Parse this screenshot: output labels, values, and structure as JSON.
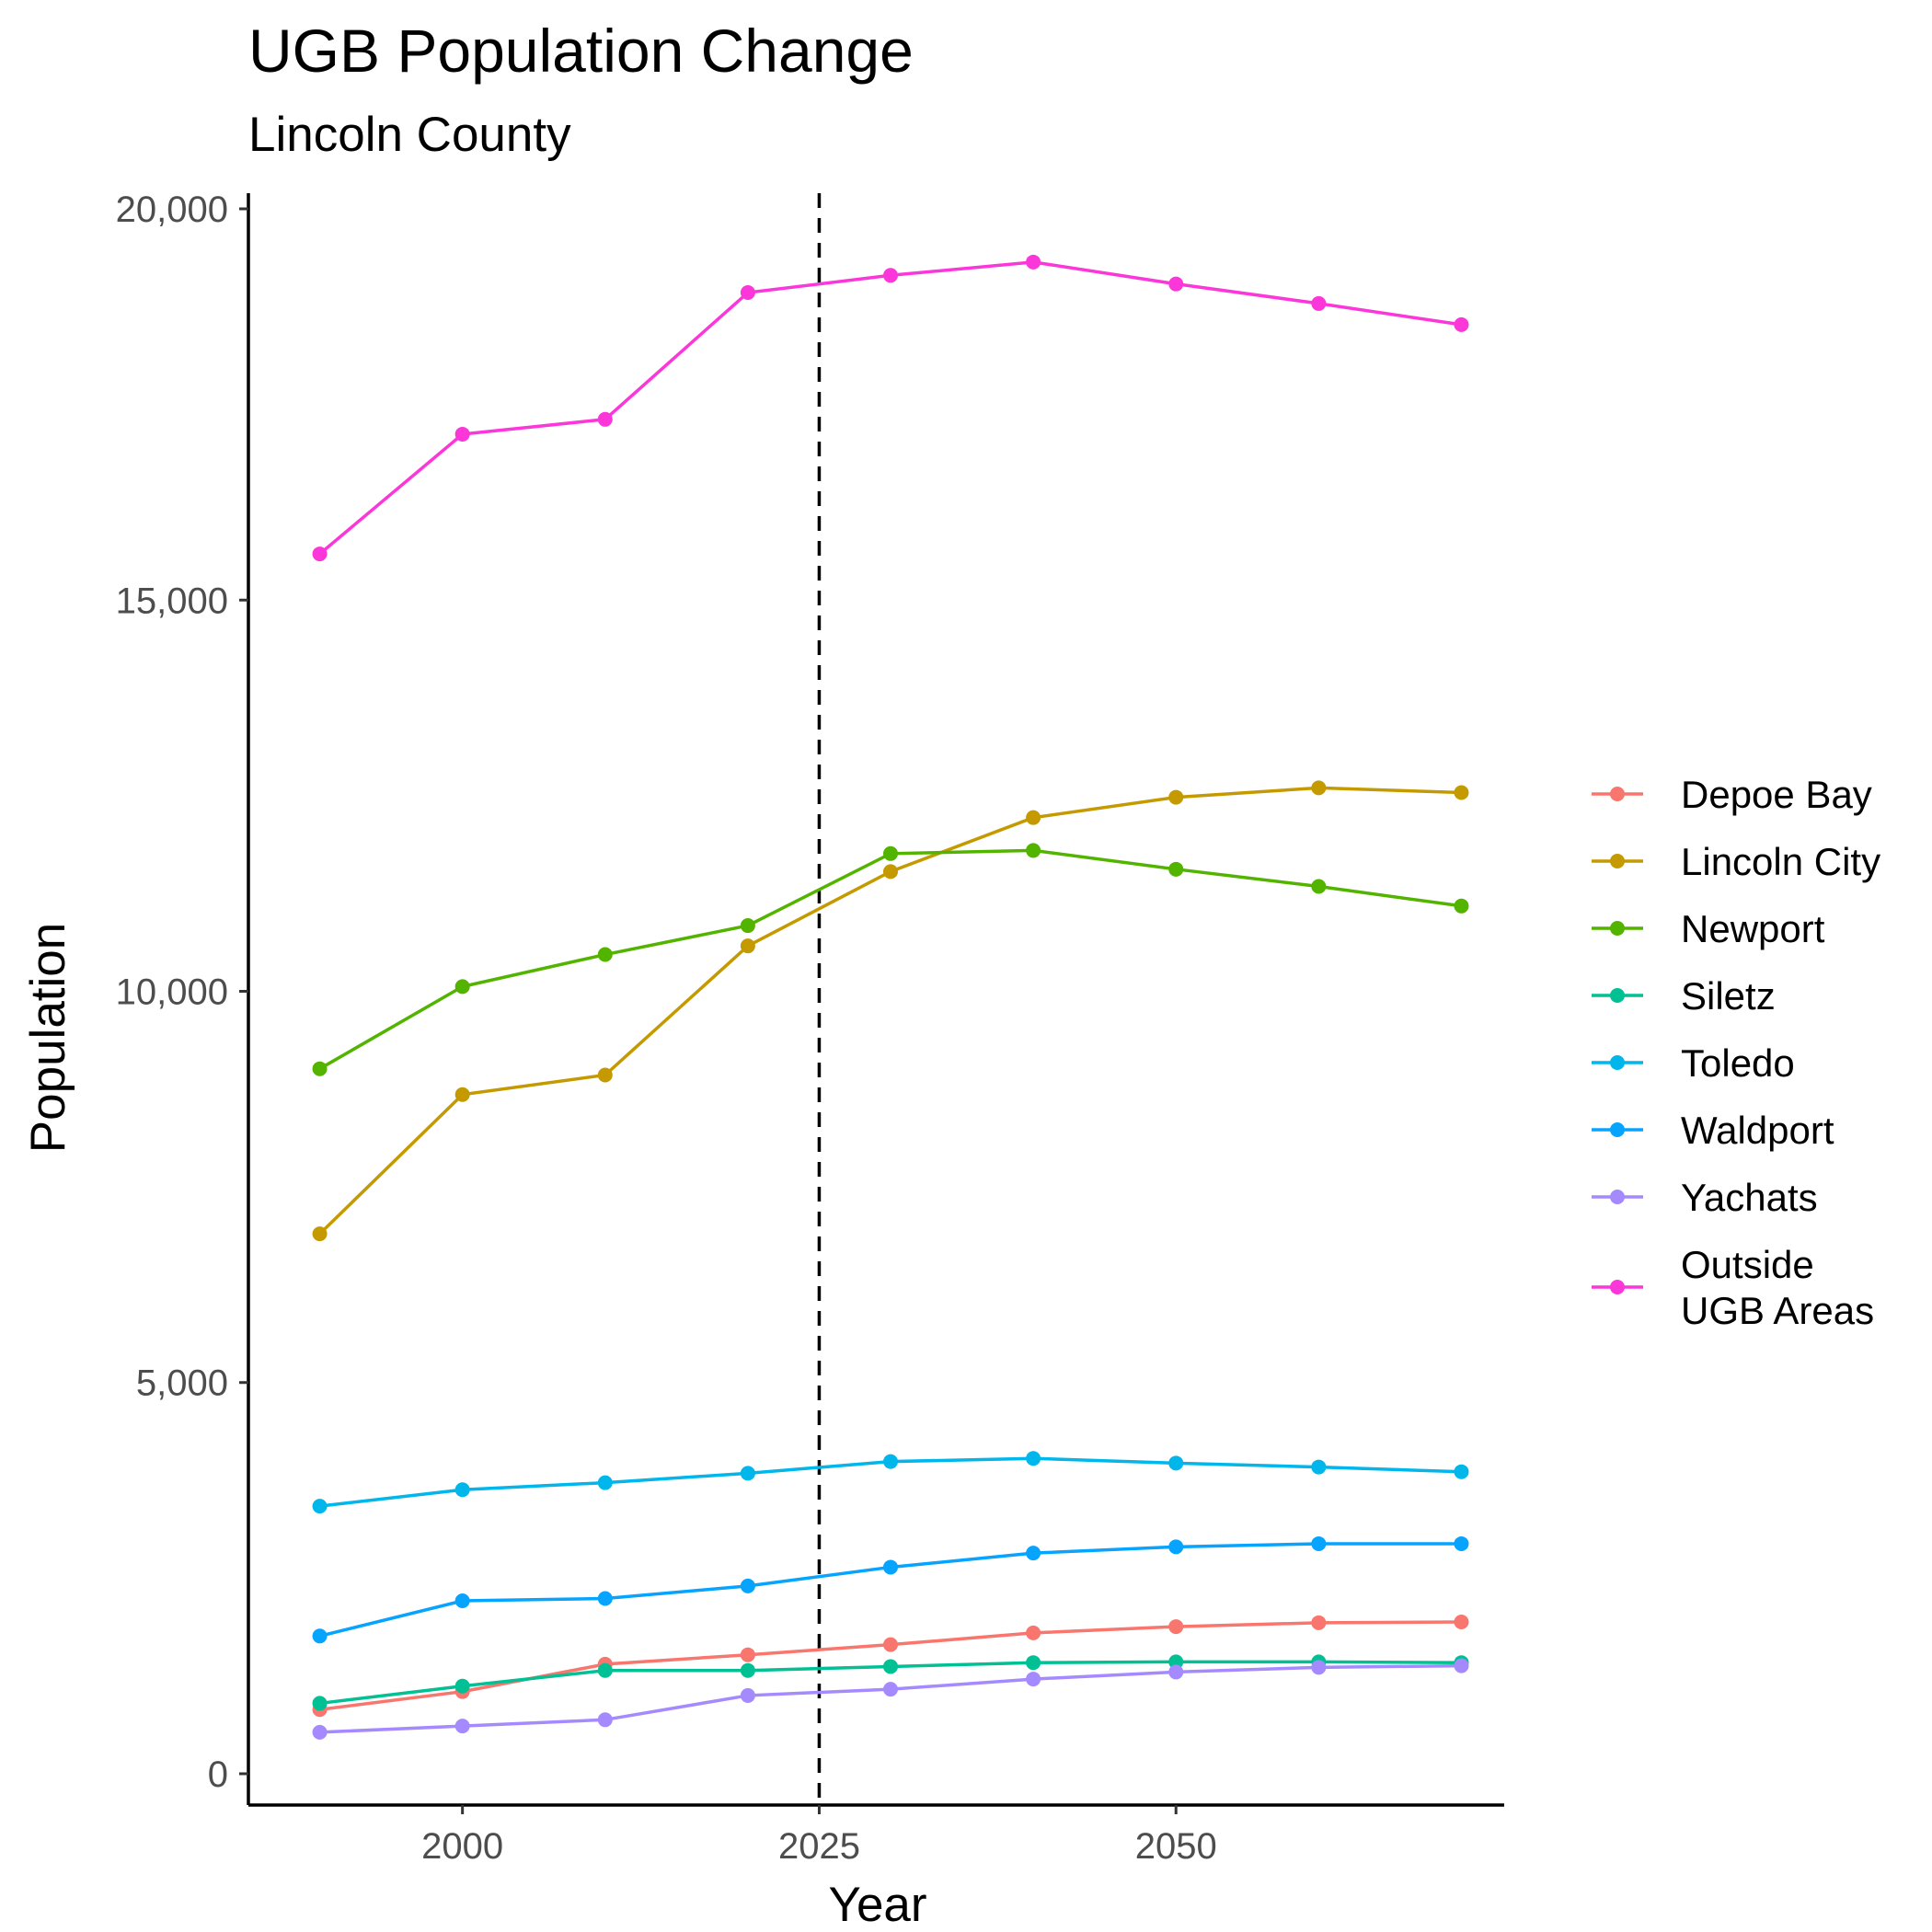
{
  "chart_data": {
    "type": "line",
    "title": "UGB Population Change",
    "subtitle": "Lincoln County",
    "xlabel": "Year",
    "ylabel": "Population",
    "xlim": [
      1985,
      2073
    ],
    "ylim": [
      -400,
      20200
    ],
    "x_ticks": [
      2000,
      2025,
      2050
    ],
    "y_ticks": [
      0,
      5000,
      10000,
      15000,
      20000
    ],
    "y_tick_labels": [
      "0",
      "5,000",
      "10,000",
      "15,000",
      "20,000"
    ],
    "reference_line": {
      "x": 2025,
      "style": "dashed"
    },
    "grid": false,
    "legend_position": "right",
    "x": [
      1990,
      2000,
      2010,
      2020,
      2030,
      2040,
      2050,
      2060,
      2070
    ],
    "series": [
      {
        "name": "Depoe Bay",
        "color": "#F8766D",
        "values": [
          820,
          1050,
          1400,
          1520,
          1650,
          1800,
          1880,
          1930,
          1940
        ]
      },
      {
        "name": "Lincoln City",
        "color": "#C49A00",
        "values": [
          6900,
          8680,
          8930,
          10580,
          11530,
          12220,
          12480,
          12600,
          12540
        ]
      },
      {
        "name": "Newport",
        "color": "#53B400",
        "values": [
          9010,
          10060,
          10470,
          10840,
          11760,
          11800,
          11560,
          11340,
          11090
        ]
      },
      {
        "name": "Siletz",
        "color": "#00C094",
        "values": [
          900,
          1120,
          1320,
          1320,
          1370,
          1420,
          1430,
          1430,
          1420
        ]
      },
      {
        "name": "Toledo",
        "color": "#00B6EB",
        "values": [
          3420,
          3630,
          3720,
          3840,
          3990,
          4030,
          3970,
          3920,
          3860
        ]
      },
      {
        "name": "Waldport",
        "color": "#06A4FF",
        "values": [
          1760,
          2210,
          2240,
          2400,
          2640,
          2820,
          2900,
          2940,
          2940
        ]
      },
      {
        "name": "Yachats",
        "color": "#A58AFF",
        "values": [
          530,
          610,
          690,
          1000,
          1080,
          1210,
          1300,
          1360,
          1380
        ]
      },
      {
        "name": "Outside\nUGB Areas",
        "color": "#FB37DA",
        "values": [
          15590,
          17120,
          17310,
          18930,
          19150,
          19320,
          19040,
          18790,
          18520
        ]
      }
    ]
  }
}
